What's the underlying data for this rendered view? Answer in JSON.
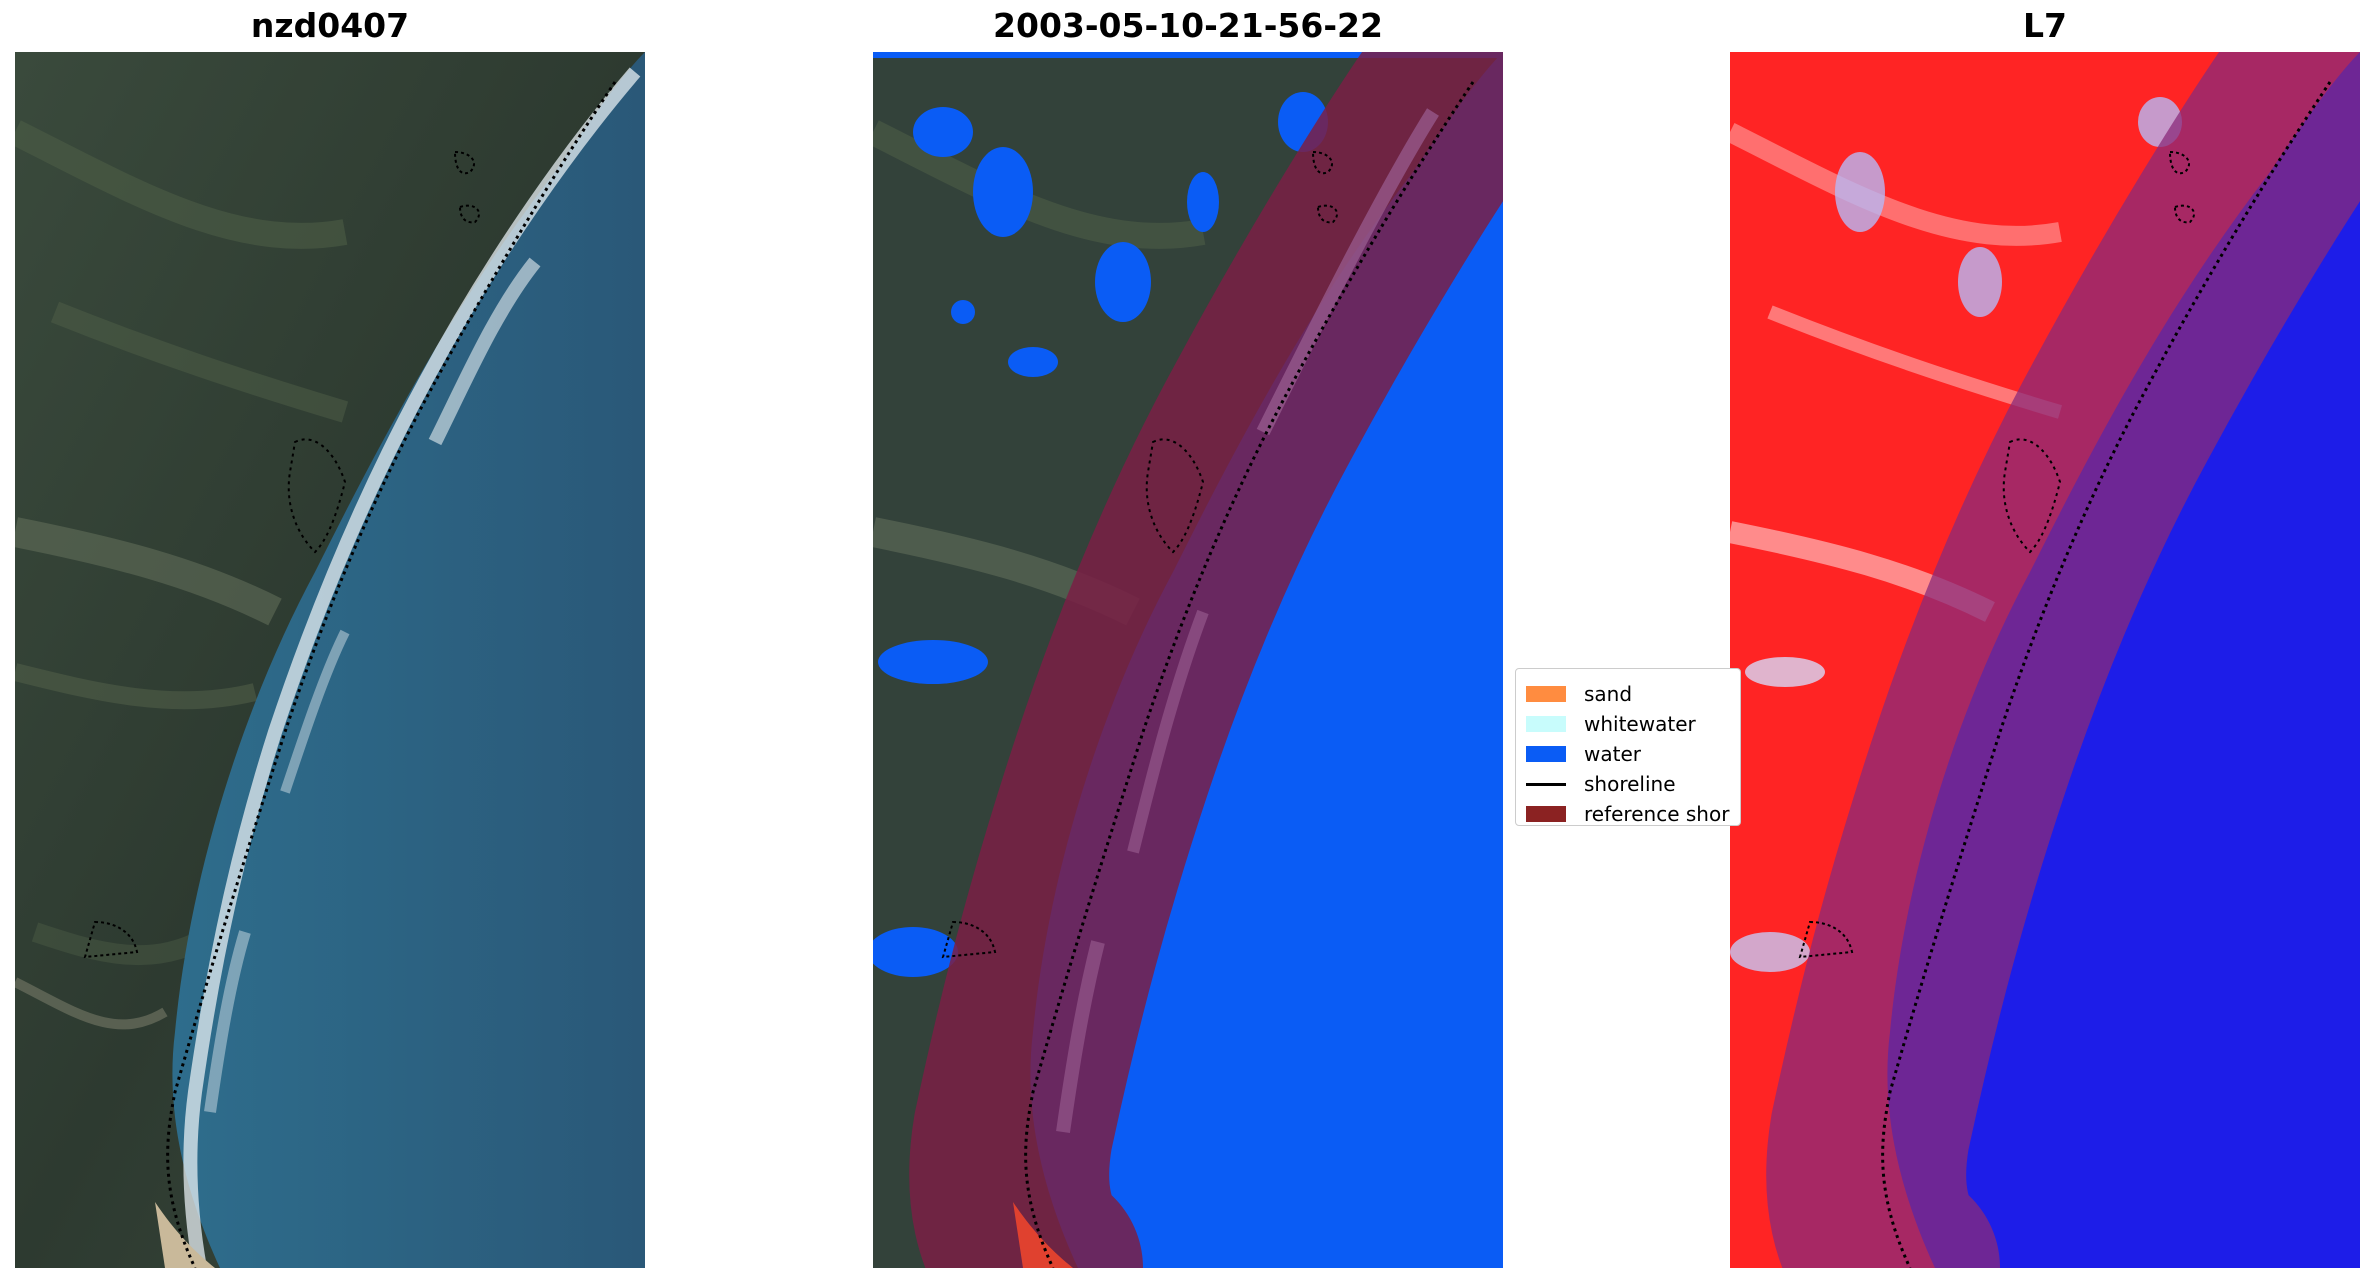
{
  "panels": [
    {
      "id": "rgb",
      "title": "nzd0407"
    },
    {
      "id": "classified",
      "title": "2003-05-10-21-56-22"
    },
    {
      "id": "index",
      "title": "L7"
    }
  ],
  "legend": {
    "items": [
      {
        "label": "sand",
        "color": "#ff8c40",
        "kind": "patch"
      },
      {
        "label": "whitewater",
        "color": "#c8fcfc",
        "kind": "patch"
      },
      {
        "label": "water",
        "color": "#0a5cf5",
        "kind": "patch"
      },
      {
        "label": "shoreline",
        "color": "#000000",
        "kind": "line"
      },
      {
        "label": "reference shor",
        "color": "#8b2222",
        "kind": "patch"
      }
    ]
  },
  "colors": {
    "land": "#2f3f35",
    "sea": "#2b6384",
    "water_class": "#0a5cf5",
    "reference_band": "#7a1f45",
    "index_land": "#ff2020",
    "index_water": "#1d1de8"
  }
}
